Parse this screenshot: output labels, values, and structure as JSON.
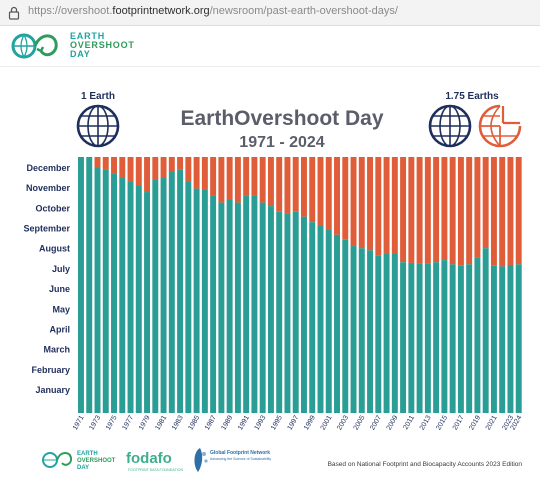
{
  "browser": {
    "url_prefix": "https://overshoot.",
    "url_domain": "footprintnetwork.org",
    "url_path": "/newsroom/past-earth-overshoot-days/"
  },
  "site": {
    "logo_line1": "EARTH",
    "logo_line2": "OVERSHOOT",
    "logo_line3": "DAY"
  },
  "chart_data": {
    "type": "bar",
    "title": "EarthOvershoot Day",
    "subtitle": "1971 - 2024",
    "left_badge": "1 Earth",
    "right_badge": "1.75 Earths",
    "y_labels": [
      "December",
      "November",
      "October",
      "September",
      "August",
      "July",
      "June",
      "May",
      "April",
      "March",
      "February",
      "January"
    ],
    "years": [
      1971,
      1972,
      1973,
      1974,
      1975,
      1976,
      1977,
      1978,
      1979,
      1980,
      1981,
      1982,
      1983,
      1984,
      1985,
      1986,
      1987,
      1988,
      1989,
      1990,
      1991,
      1992,
      1993,
      1994,
      1995,
      1996,
      1997,
      1998,
      1999,
      2000,
      2001,
      2002,
      2003,
      2004,
      2005,
      2006,
      2007,
      2008,
      2009,
      2010,
      2011,
      2012,
      2013,
      2014,
      2015,
      2016,
      2017,
      2018,
      2019,
      2020,
      2021,
      2022,
      2023,
      2024
    ],
    "x_tick_labels": [
      "1971",
      "1973",
      "1975",
      "1977",
      "1979",
      "1981",
      "1983",
      "1985",
      "1987",
      "1989",
      "1991",
      "1993",
      "1995",
      "1997",
      "1999",
      "2001",
      "2003",
      "2005",
      "2007",
      "2009",
      "2011",
      "2013",
      "2015",
      "2017",
      "2019",
      "2021",
      "2023",
      "2024"
    ],
    "day_of_year": [
      365,
      365,
      350,
      347,
      342,
      335,
      330,
      325,
      315,
      333,
      335,
      345,
      347,
      330,
      320,
      318,
      310,
      300,
      305,
      300,
      310,
      310,
      300,
      295,
      287,
      285,
      287,
      280,
      272,
      268,
      261,
      254,
      247,
      238,
      235,
      232,
      225,
      228,
      228,
      215,
      214,
      213,
      213,
      215,
      218,
      212,
      210,
      212,
      222,
      235,
      210,
      209,
      211,
      212
    ],
    "ylim": [
      0,
      365
    ],
    "colors": {
      "earth_part": "#2a9d95",
      "overshoot_part": "#e05d3a",
      "title": "#5b5e6a",
      "globe": "#1f2f5c"
    }
  },
  "footer": {
    "logo1_line1": "EARTH",
    "logo1_line2": "OVERSHOOT",
    "logo1_line3": "DAY",
    "fodafo": "fodafo",
    "fodafo_sub": "FOOTPRINT DATA FOUNDATION",
    "gfn_line1": "Global Footprint Network",
    "gfn_line2": "Advancing the Science of Sustainability",
    "source": "Based on National Footprint and Biocapacity Accounts 2023 Edition"
  }
}
